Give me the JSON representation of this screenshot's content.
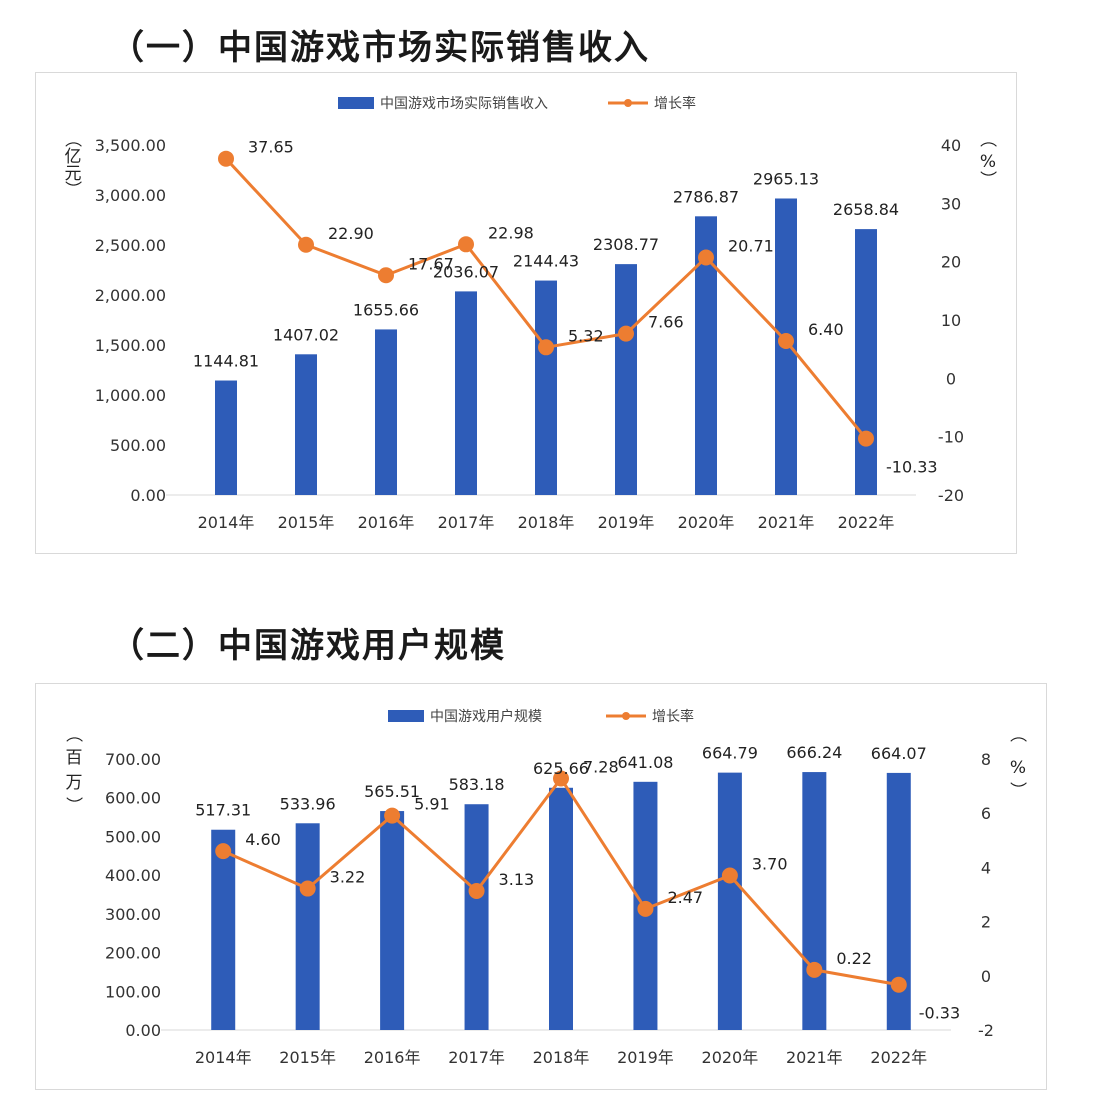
{
  "sections": [
    {
      "heading": "（一）中国游戏市场实际销售收入"
    },
    {
      "heading": "（二）中国游戏用户规模"
    }
  ],
  "colors": {
    "bar": "#2e5cb8",
    "line": "#ed7d31",
    "axis_text": "#333333",
    "grid": "#d9d9d9"
  },
  "chart_data": [
    {
      "type": "bar+line",
      "categories": [
        "2014年",
        "2015年",
        "2016年",
        "2017年",
        "2018年",
        "2019年",
        "2020年",
        "2021年",
        "2022年"
      ],
      "series": [
        {
          "name": "中国游戏市场实际销售收入",
          "type": "bar",
          "axis": "left",
          "values": [
            1144.81,
            1407.02,
            1655.66,
            2036.07,
            2144.43,
            2308.77,
            2786.87,
            2965.13,
            2658.84
          ],
          "labels": [
            "1144.81",
            "1407.02",
            "1655.66",
            "2036.07",
            "2144.43",
            "2308.77",
            "2786.87",
            "2965.13",
            "2658.84"
          ]
        },
        {
          "name": "增长率",
          "type": "line",
          "axis": "right",
          "values": [
            37.65,
            22.9,
            17.67,
            22.98,
            5.32,
            7.66,
            20.71,
            6.4,
            -10.33
          ],
          "labels": [
            "37.65",
            "22.90",
            "17.67",
            "22.98",
            "5.32",
            "7.66",
            "20.71",
            "6.40",
            "-10.33"
          ]
        }
      ],
      "y_left": {
        "label": "（亿元）",
        "min": 0,
        "max": 3500,
        "ticks": [
          0,
          500,
          1000,
          1500,
          2000,
          2500,
          3000,
          3500
        ],
        "tick_labels": [
          "0.00",
          "500.00",
          "1,000.00",
          "1,500.00",
          "2,000.00",
          "2,500.00",
          "3,000.00",
          "3,500.00"
        ]
      },
      "y_right": {
        "label": "（%）",
        "min": -20,
        "max": 40,
        "ticks": [
          -20,
          -10,
          0,
          10,
          20,
          30,
          40
        ],
        "tick_labels": [
          "-20",
          "-10",
          "0",
          "10",
          "20",
          "30",
          "40"
        ]
      },
      "legend_position": "top-center"
    },
    {
      "type": "bar+line",
      "categories": [
        "2014年",
        "2015年",
        "2016年",
        "2017年",
        "2018年",
        "2019年",
        "2020年",
        "2021年",
        "2022年"
      ],
      "series": [
        {
          "name": "中国游戏用户规模",
          "type": "bar",
          "axis": "left",
          "values": [
            517.31,
            533.96,
            565.51,
            583.18,
            625.66,
            641.08,
            664.79,
            666.24,
            664.07
          ],
          "labels": [
            "517.31",
            "533.96",
            "565.51",
            "583.18",
            "625.66",
            "641.08",
            "664.79",
            "666.24",
            "664.07"
          ]
        },
        {
          "name": "增长率",
          "type": "line",
          "axis": "right",
          "values": [
            4.6,
            3.22,
            5.91,
            3.13,
            7.28,
            2.47,
            3.7,
            0.22,
            -0.33
          ],
          "labels": [
            "4.60",
            "3.22",
            "5.91",
            "3.13",
            "7.28",
            "2.47",
            "3.70",
            "0.22",
            "-0.33"
          ]
        }
      ],
      "y_left": {
        "label": "（百万）",
        "min": 0,
        "max": 700,
        "ticks": [
          0,
          100,
          200,
          300,
          400,
          500,
          600,
          700
        ],
        "tick_labels": [
          "0.00",
          "100.00",
          "200.00",
          "300.00",
          "400.00",
          "500.00",
          "600.00",
          "700.00"
        ]
      },
      "y_right": {
        "label": "（%）",
        "min": -2,
        "max": 8,
        "ticks": [
          -2,
          0,
          2,
          4,
          6,
          8
        ],
        "tick_labels": [
          "-2",
          "0",
          "2",
          "4",
          "6",
          "8"
        ]
      },
      "legend_position": "top-center"
    }
  ]
}
